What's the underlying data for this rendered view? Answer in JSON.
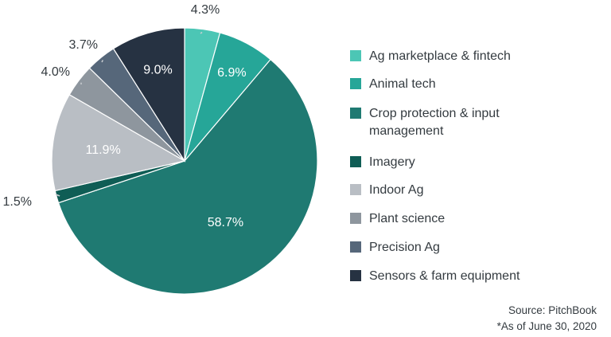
{
  "chart_data": {
    "type": "pie",
    "title": "",
    "slices": [
      {
        "label": "Ag marketplace & fintech",
        "value": 4.3,
        "display": "4.3%",
        "color": "#4cc6b5",
        "label_pos": "outside"
      },
      {
        "label": "Animal tech",
        "value": 6.9,
        "display": "6.9%",
        "color": "#26a698",
        "label_pos": "inside"
      },
      {
        "label": "Crop protection & input management",
        "value": 58.7,
        "display": "58.7%",
        "color": "#1f7a72",
        "label_pos": "inside"
      },
      {
        "label": "Imagery",
        "value": 1.5,
        "display": "1.5%",
        "color": "#0f5d55",
        "label_pos": "outside"
      },
      {
        "label": "Indoor Ag",
        "value": 11.9,
        "display": "11.9%",
        "color": "#b9bec4",
        "label_pos": "inside"
      },
      {
        "label": "Plant science",
        "value": 4.0,
        "display": "4.0%",
        "color": "#8e969e",
        "label_pos": "outside"
      },
      {
        "label": "Precision Ag",
        "value": 3.7,
        "display": "3.7%",
        "color": "#56677a",
        "label_pos": "outside"
      },
      {
        "label": "Sensors & farm equipment",
        "value": 9.0,
        "display": "9.0%",
        "color": "#263242",
        "label_pos": "inside"
      }
    ],
    "start_angle_deg": 0,
    "direction": "clockwise",
    "legend_position": "right"
  },
  "source": {
    "line1": "Source: PitchBook",
    "line2": "*As of June 30, 2020"
  }
}
